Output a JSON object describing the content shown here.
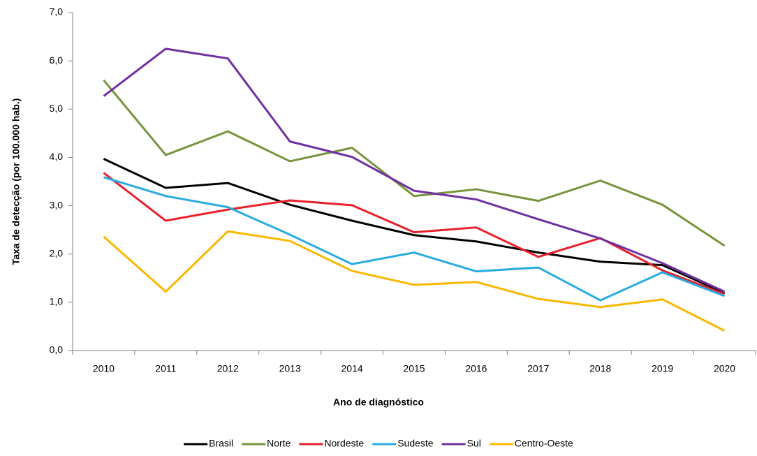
{
  "chart_data": {
    "type": "line",
    "y_label": "Taxa de detecção (por 100.000 hab.)",
    "x_label": "Ano de diagnóstico",
    "categories": [
      "2010",
      "2011",
      "2012",
      "2013",
      "2014",
      "2015",
      "2016",
      "2017",
      "2018",
      "2019",
      "2020"
    ],
    "series": [
      {
        "name": "Brasil",
        "color": "#000000",
        "values": [
          3.97,
          3.37,
          3.47,
          3.02,
          2.69,
          2.39,
          2.26,
          2.03,
          1.84,
          1.77,
          1.19
        ]
      },
      {
        "name": "Norte",
        "color": "#77933c",
        "values": [
          5.6,
          4.05,
          4.54,
          3.92,
          4.2,
          3.2,
          3.34,
          3.1,
          3.52,
          3.02,
          2.17
        ]
      },
      {
        "name": "Nordeste",
        "color": "#e8202a",
        "values": [
          3.68,
          2.69,
          2.92,
          3.11,
          3.01,
          2.45,
          2.55,
          1.94,
          2.33,
          1.66,
          1.17
        ]
      },
      {
        "name": "Sudeste",
        "color": "#29abe2",
        "values": [
          3.59,
          3.2,
          2.97,
          2.4,
          1.79,
          2.03,
          1.64,
          1.72,
          1.04,
          1.62,
          1.13
        ]
      },
      {
        "name": "Sul",
        "color": "#7030a0",
        "values": [
          5.27,
          6.25,
          6.05,
          4.33,
          4.01,
          3.31,
          3.13,
          2.72,
          2.32,
          1.81,
          1.22
        ]
      },
      {
        "name": "Centro-Oeste",
        "color": "#f9b800",
        "values": [
          2.36,
          1.22,
          2.47,
          2.27,
          1.65,
          1.36,
          1.42,
          1.07,
          0.9,
          1.06,
          0.41
        ]
      }
    ],
    "ylim": [
      0,
      7
    ],
    "yticks": [
      {
        "value": 0,
        "label": "0,0"
      },
      {
        "value": 1,
        "label": "1,0"
      },
      {
        "value": 2,
        "label": "2,0"
      },
      {
        "value": 3,
        "label": "3,0"
      },
      {
        "value": 4,
        "label": "4,0"
      },
      {
        "value": 5,
        "label": "5,0"
      },
      {
        "value": 6,
        "label": "6,0"
      },
      {
        "value": 7,
        "label": "7,0"
      }
    ],
    "grid": false,
    "legend": "bottom"
  }
}
